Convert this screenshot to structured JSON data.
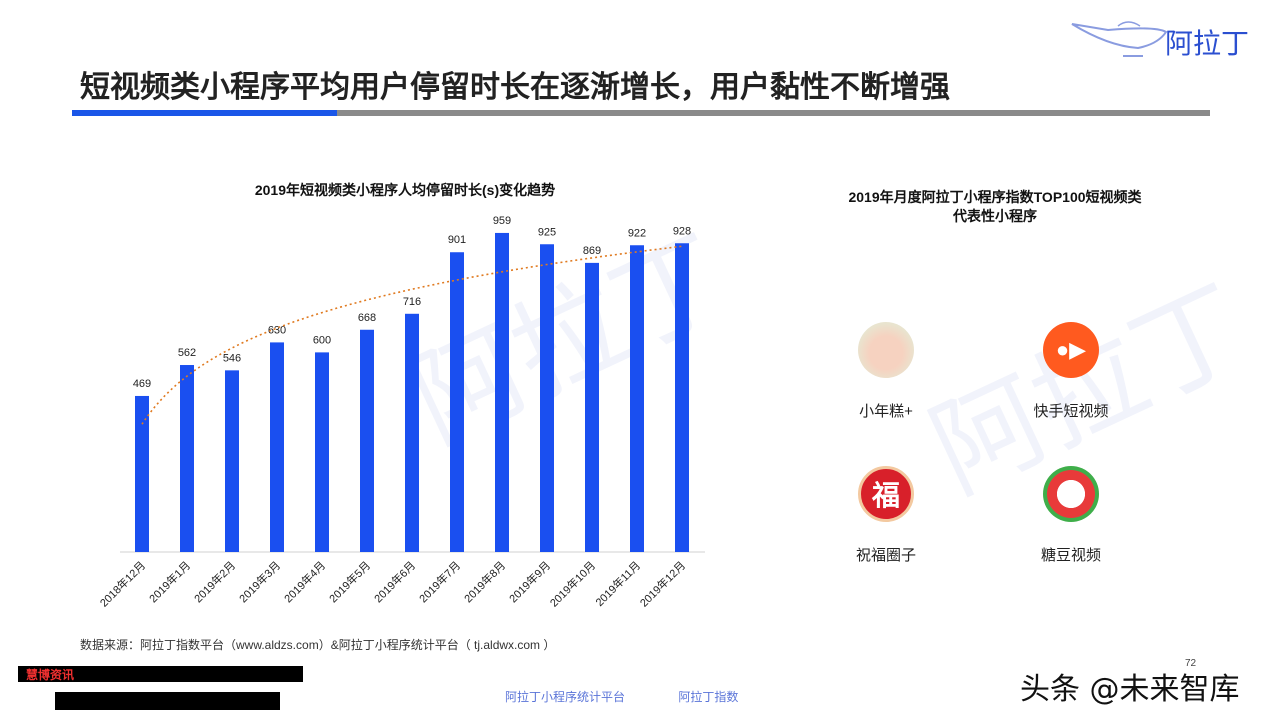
{
  "header": {
    "title": "短视频类小程序平均用户停留时长在逐渐增长，用户黏性不断增强",
    "logo_text": "阿拉丁"
  },
  "chart_data": {
    "type": "bar",
    "title": "2019年短视频类小程序人均停留时长(s)变化趋势",
    "categories": [
      "2018年12月",
      "2019年1月",
      "2019年2月",
      "2019年3月",
      "2019年4月",
      "2019年5月",
      "2019年6月",
      "2019年7月",
      "2019年8月",
      "2019年9月",
      "2019年10月",
      "2019年11月",
      "2019年12月"
    ],
    "values": [
      469,
      562,
      546,
      630,
      600,
      668,
      716,
      901,
      959,
      925,
      869,
      922,
      928
    ],
    "trendline": "logarithmic",
    "bar_color": "#1a4ff0",
    "trend_color": "#e07a20",
    "grid": false,
    "ylabel": "",
    "xlabel": ""
  },
  "right_panel": {
    "title_line1": "2019年月度阿拉丁小程序指数TOP100短视频类",
    "title_line2": "代表性小程序",
    "apps": [
      {
        "name": "小年糕+",
        "icon": "baby-photo-icon"
      },
      {
        "name": "快手短视频",
        "icon": "kuaishou-icon"
      },
      {
        "name": "祝福圈子",
        "icon": "fu-icon",
        "glyph": "福"
      },
      {
        "name": "糖豆视频",
        "icon": "tangdou-icon"
      }
    ]
  },
  "footer": {
    "source": "数据来源：阿拉丁指数平台（www.aldzs.com）&阿拉丁小程序统计平台（ tj.aldwx.com ）",
    "redacted_label": "慧博资讯",
    "logo1": "阿拉丁小程序统计平台",
    "logo2": "阿拉丁指数",
    "watermark": "头条 @未来智库",
    "page": "72"
  }
}
